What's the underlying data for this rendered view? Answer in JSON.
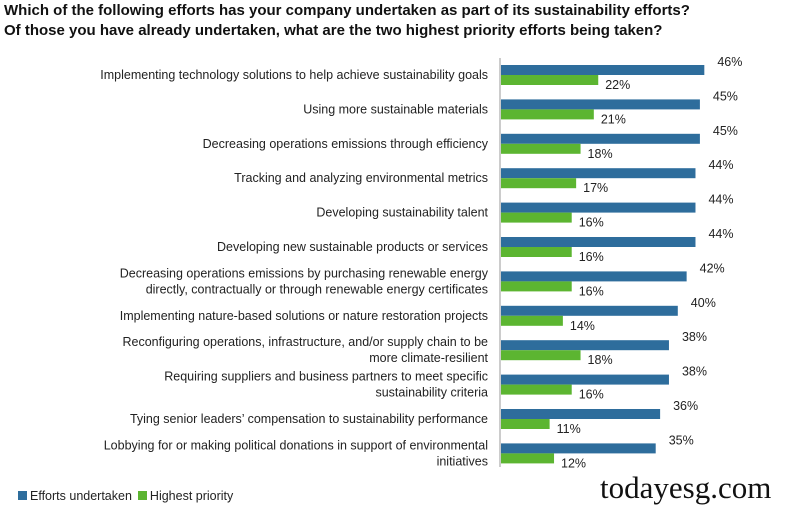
{
  "chart_data": {
    "type": "bar",
    "orientation": "horizontal",
    "title": [
      "Which of the following efforts has your company undertaken as part of its sustainability efforts?",
      "Of those you have already undertaken, what are the two highest priority efforts being taken?"
    ],
    "categories": [
      [
        "Implementing technology solutions to help achieve sustainability goals"
      ],
      [
        "Using more sustainable materials"
      ],
      [
        "Decreasing operations emissions through efficiency"
      ],
      [
        "Tracking and analyzing environmental metrics"
      ],
      [
        "Developing sustainability talent"
      ],
      [
        "Developing new sustainable products or services"
      ],
      [
        "Decreasing operations emissions by purchasing renewable energy",
        "directly, contractually or through renewable energy certificates"
      ],
      [
        "Implementing nature-based solutions or nature restoration projects"
      ],
      [
        "Reconfiguring operations, infrastructure, and/or supply chain to be",
        "more climate-resilient"
      ],
      [
        "Requiring suppliers and business partners to meet specific",
        "sustainability criteria"
      ],
      [
        "Tying senior leaders’ compensation to sustainability performance"
      ],
      [
        "Lobbying for or making political donations in support of environmental",
        "initiatives"
      ]
    ],
    "series": [
      {
        "name": "Efforts undertaken",
        "color": "#2e6d9c",
        "values": [
          46,
          45,
          45,
          44,
          44,
          44,
          42,
          40,
          38,
          38,
          36,
          35
        ]
      },
      {
        "name": "Highest priority",
        "color": "#5cb531",
        "values": [
          22,
          21,
          18,
          17,
          16,
          16,
          16,
          14,
          18,
          16,
          11,
          12
        ]
      }
    ],
    "value_suffix": "%",
    "legend": "bottom-left",
    "grid": false
  },
  "watermark": "todayesg.com"
}
